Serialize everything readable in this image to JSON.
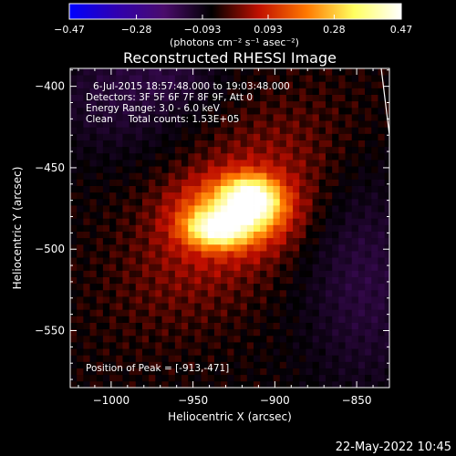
{
  "chart_data": {
    "type": "heatmap",
    "title": "Reconstructed RHESSI Image",
    "xlabel": "Heliocentric X (arcsec)",
    "ylabel": "Heliocentric Y (arcsec)",
    "xlim": [
      -1025,
      -830
    ],
    "ylim": [
      -585,
      -389
    ],
    "xticks": [
      -1000,
      -950,
      -900,
      -850
    ],
    "yticks": [
      -400,
      -450,
      -500,
      -550
    ],
    "xtick_labels": [
      "−1000",
      "−950",
      "−900",
      "−850"
    ],
    "ytick_labels": [
      "−400",
      "−450",
      "−500",
      "−550"
    ],
    "colorbar": {
      "min": -0.47,
      "max": 0.47,
      "ticks": [
        -0.47,
        -0.28,
        -0.093,
        0.093,
        0.28,
        0.47
      ],
      "tick_labels": [
        "−0.47",
        "−0.28",
        "−0.093",
        "0.093",
        "0.28",
        "0.47"
      ],
      "unit_label": "(photons cm⁻² s⁻¹ asec⁻²)",
      "colors": [
        "#0000ff",
        "#3000b0",
        "#4a0c6b",
        "#000000",
        "#c01000",
        "#ff7800",
        "#ffff60",
        "#ffffff"
      ]
    },
    "sources": [
      {
        "x": -935,
        "y": -487,
        "amp": 0.33,
        "sx": 12,
        "sy": 7
      },
      {
        "x": -915,
        "y": -470,
        "amp": 0.4,
        "sx": 11,
        "sy": 9
      },
      {
        "x": -925,
        "y": -478,
        "amp": 0.18,
        "sx": 22,
        "sy": 14
      }
    ],
    "limb_arc": {
      "x": [
        -835,
        -830,
        -828
      ],
      "y": [
        -389,
        -430,
        -440
      ]
    },
    "annotations": {
      "time": "6-Jul-2015 18:57:48.000 to 19:03:48.000",
      "detectors": "Detectors: 3F 5F 6F 7F 8F 9F, Att 0",
      "energy": "Energy Range: 3.0 - 6.0 keV",
      "clean": "Clean     Total counts: 1.53E+05",
      "peak": "Position of Peak = [-913,-471]"
    },
    "timestamp": "22-May-2022 10:45"
  }
}
